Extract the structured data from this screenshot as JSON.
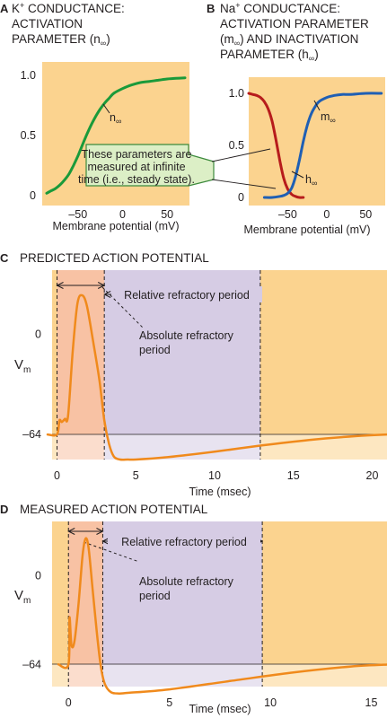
{
  "chart_data": [
    {
      "panel": "A",
      "type": "line",
      "title": "K⁺ CONDUCTANCE: ACTIVATION PARAMETER (n∞)",
      "title_lines": [
        "K",
        "+",
        " CONDUCTANCE:",
        "ACTIVATION",
        "PARAMETER (n",
        "∞",
        ")"
      ],
      "xlabel": "Membrane potential (mV)",
      "xlim": [
        -90,
        75
      ],
      "ylim": [
        0,
        1.0
      ],
      "x_ticks": [
        -50,
        0,
        50
      ],
      "x_tick_labels": [
        "–50",
        "0",
        "50"
      ],
      "y_ticks": [
        0,
        0.5,
        1.0
      ],
      "y_tick_labels": [
        "0",
        "0.5",
        "1.0"
      ],
      "series": [
        {
          "name": "n∞",
          "label_main": "n",
          "label_sub": "∞",
          "color": "#1a9a3a",
          "x": [
            -85,
            -80,
            -75,
            -70,
            -65,
            -60,
            -55,
            -50,
            -45,
            -40,
            -35,
            -30,
            -25,
            -20,
            -15,
            -10,
            0,
            10,
            20,
            30,
            40,
            50,
            60,
            70
          ],
          "y": [
            0.02,
            0.04,
            0.06,
            0.09,
            0.13,
            0.18,
            0.25,
            0.33,
            0.42,
            0.51,
            0.59,
            0.66,
            0.72,
            0.77,
            0.81,
            0.85,
            0.89,
            0.92,
            0.94,
            0.95,
            0.96,
            0.97,
            0.975,
            0.98
          ]
        }
      ]
    },
    {
      "panel": "B",
      "type": "line",
      "title": "Na⁺ CONDUCTANCE: ACTIVATION PARAMETER (m∞) AND INACTIVATION PARAMETER (h∞)",
      "title_lines": [
        "Na",
        "+",
        " CONDUCTANCE:",
        "ACTIVATION PARAMETER",
        "(m",
        "∞",
        ") AND INACTIVATION",
        "PARAMETER (h",
        "∞",
        ")"
      ],
      "xlabel": "Membrane potential (mV)",
      "xlim": [
        -100,
        75
      ],
      "ylim": [
        0,
        1.0
      ],
      "x_ticks": [
        -50,
        0,
        50
      ],
      "x_tick_labels": [
        "–50",
        "0",
        "50"
      ],
      "y_ticks": [
        0,
        0.5,
        1.0
      ],
      "y_tick_labels": [
        "0",
        "0.5",
        "1.0"
      ],
      "series": [
        {
          "name": "m∞",
          "label_main": "m",
          "label_sub": "∞",
          "color": "#1f5fb4",
          "x": [
            -80,
            -70,
            -60,
            -55,
            -50,
            -45,
            -40,
            -35,
            -30,
            -25,
            -20,
            -15,
            -10,
            0,
            10,
            20,
            30,
            50,
            70
          ],
          "y": [
            0.0,
            0.0,
            0.01,
            0.02,
            0.04,
            0.09,
            0.2,
            0.36,
            0.54,
            0.69,
            0.8,
            0.87,
            0.92,
            0.96,
            0.98,
            0.99,
            0.99,
            1.0,
            1.0
          ]
        },
        {
          "name": "h∞",
          "label_main": "h",
          "label_sub": "∞",
          "color": "#b71c1c",
          "x": [
            -100,
            -95,
            -90,
            -85,
            -80,
            -75,
            -70,
            -65,
            -60,
            -55,
            -50,
            -45,
            -40,
            -35,
            -30
          ],
          "y": [
            1.0,
            0.99,
            0.98,
            0.96,
            0.92,
            0.85,
            0.73,
            0.55,
            0.35,
            0.18,
            0.08,
            0.03,
            0.01,
            0.0,
            0.0
          ]
        }
      ]
    },
    {
      "panel": "C",
      "type": "line",
      "title": "PREDICTED ACTION POTENTIAL",
      "xlabel": "Time (msec)",
      "ylabel_main": "V",
      "ylabel_sub": "m",
      "xlim": [
        -0.6,
        21
      ],
      "ylim": [
        -80,
        40
      ],
      "x_ticks": [
        0,
        5,
        10,
        15,
        20
      ],
      "y_ticks": [
        0,
        -64
      ],
      "y_tick_labels": [
        "0",
        "–64"
      ],
      "absolute_refractory_end": 3.0,
      "relative_refractory_end": 12.9,
      "series": [
        {
          "name": "",
          "color": "#f08a1c",
          "x": [
            -0.6,
            0,
            0.15,
            0.3,
            0.5,
            0.7,
            1.0,
            1.3,
            1.6,
            1.9,
            2.3,
            2.7,
            3.0,
            3.3,
            3.6,
            4.0,
            4.5,
            5.0,
            7.0,
            10.0,
            13.0,
            16.0,
            19.0,
            21.0
          ],
          "y": [
            -64,
            -64,
            -55,
            -56,
            -54,
            -52,
            -10,
            20,
            25,
            18,
            -5,
            -30,
            -55,
            -70,
            -78,
            -80,
            -80,
            -80,
            -78.5,
            -75,
            -71,
            -67.5,
            -65,
            -64
          ]
        }
      ],
      "annotations": [
        "Relative refractory period",
        "Absolute refractory",
        "period"
      ]
    },
    {
      "panel": "D",
      "type": "line",
      "title": "MEASURED ACTION POTENTIAL",
      "xlabel": "Time (msec)",
      "ylabel_main": "V",
      "ylabel_sub": "m",
      "xlim": [
        -0.5,
        16
      ],
      "ylim": [
        -80,
        40
      ],
      "x_ticks": [
        0,
        5,
        10,
        15
      ],
      "y_ticks": [
        0,
        -64
      ],
      "y_tick_labels": [
        "0",
        "–64"
      ],
      "absolute_refractory_end": 1.7,
      "relative_refractory_end": 9.6,
      "series": [
        {
          "name": "",
          "color": "#f08a1c",
          "x": [
            -0.5,
            0,
            0.05,
            0.15,
            0.3,
            0.5,
            0.7,
            0.85,
            1.0,
            1.2,
            1.4,
            1.6,
            1.8,
            2.1,
            2.5,
            3.0,
            5.0,
            8.0,
            11.0,
            14.0,
            16.0
          ],
          "y": [
            -64,
            -64,
            -30,
            -50,
            -47,
            -20,
            15,
            27,
            20,
            -10,
            -40,
            -65,
            -78,
            -84,
            -85,
            -84.5,
            -82,
            -76,
            -70,
            -65.5,
            -64
          ]
        }
      ],
      "annotations": [
        "Relative refractory period",
        "Absolute refractory",
        "period"
      ]
    }
  ],
  "callout_lines": [
    "These parameters are",
    "measured at infinite",
    "time (i.e., steady state)."
  ],
  "colors": {
    "panel_bg": "#fbd38f",
    "absolute_band": "#f8c2a4",
    "relative_band": "#d6cce4",
    "callout_bg": "#dcefc6",
    "callout_border": "#3d8a3d"
  }
}
